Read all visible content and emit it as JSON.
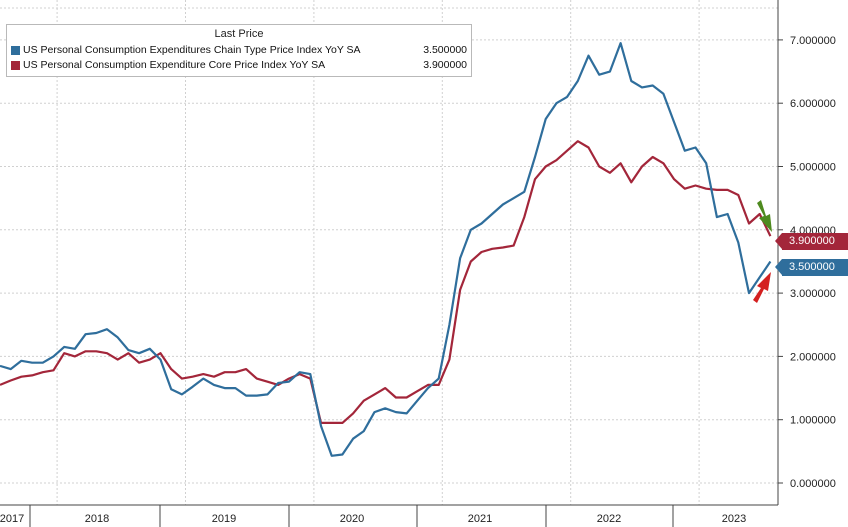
{
  "legend": {
    "title": "Last Price",
    "items": [
      {
        "name": "US Personal Consumption Expenditures Chain Type Price Index YoY SA",
        "value": "3.500000",
        "color": "#2f6e9c"
      },
      {
        "name": "US Personal Consumption Expenditure Core Price Index YoY SA",
        "value": "3.900000",
        "color": "#a3263a"
      }
    ]
  },
  "tags": {
    "core": {
      "label": "3.900000",
      "color": "#a3263a"
    },
    "headline": {
      "label": "3.500000",
      "color": "#2f6e9c"
    }
  },
  "arrows": {
    "down_color": "#4e8a1f",
    "up_color": "#d41f1f"
  },
  "chart_data": {
    "type": "line",
    "x_start": "2017-10",
    "x_labels": [
      "2017",
      "2018",
      "2019",
      "2020",
      "2021",
      "2022",
      "2023"
    ],
    "y_ticks": [
      "0.000000",
      "1.000000",
      "2.000000",
      "3.000000",
      "4.000000",
      "5.000000",
      "6.000000",
      "7.000000"
    ],
    "ylim": [
      -0.2,
      7.5
    ],
    "grid": true,
    "series": [
      {
        "name": "US Personal Consumption Expenditures Chain Type Price Index YoY SA",
        "color": "#2f6e9c",
        "values": [
          1.85,
          1.8,
          1.93,
          1.9,
          1.9,
          2.0,
          2.15,
          2.12,
          2.35,
          2.37,
          2.43,
          2.3,
          2.1,
          2.05,
          2.12,
          1.95,
          1.48,
          1.4,
          1.52,
          1.65,
          1.55,
          1.5,
          1.5,
          1.38,
          1.38,
          1.4,
          1.58,
          1.6,
          1.75,
          1.72,
          0.9,
          0.43,
          0.45,
          0.7,
          0.82,
          1.12,
          1.18,
          1.12,
          1.1,
          1.3,
          1.5,
          1.65,
          2.5,
          3.55,
          4.0,
          4.1,
          4.25,
          4.4,
          4.5,
          4.6,
          5.15,
          5.75,
          6.0,
          6.1,
          6.35,
          6.75,
          6.45,
          6.5,
          6.95,
          6.35,
          6.25,
          6.28,
          6.15,
          5.7,
          5.25,
          5.3,
          5.05,
          4.2,
          4.25,
          3.8,
          3.0,
          3.25,
          3.5
        ]
      },
      {
        "name": "US Personal Consumption Expenditure Core Price Index YoY SA",
        "color": "#a3263a",
        "values": [
          1.55,
          1.62,
          1.68,
          1.7,
          1.75,
          1.78,
          2.05,
          2.0,
          2.08,
          2.08,
          2.05,
          1.95,
          2.05,
          1.9,
          1.95,
          2.05,
          1.8,
          1.65,
          1.68,
          1.72,
          1.68,
          1.75,
          1.75,
          1.8,
          1.65,
          1.6,
          1.55,
          1.65,
          1.72,
          1.65,
          0.95,
          0.95,
          0.95,
          1.1,
          1.3,
          1.4,
          1.5,
          1.35,
          1.35,
          1.45,
          1.55,
          1.55,
          1.95,
          3.05,
          3.5,
          3.65,
          3.7,
          3.72,
          3.75,
          4.2,
          4.8,
          5.0,
          5.1,
          5.25,
          5.4,
          5.3,
          5.0,
          4.9,
          5.05,
          4.75,
          5.0,
          5.15,
          5.05,
          4.8,
          4.65,
          4.7,
          4.65,
          4.63,
          4.63,
          4.55,
          4.1,
          4.25,
          3.9
        ]
      }
    ]
  }
}
